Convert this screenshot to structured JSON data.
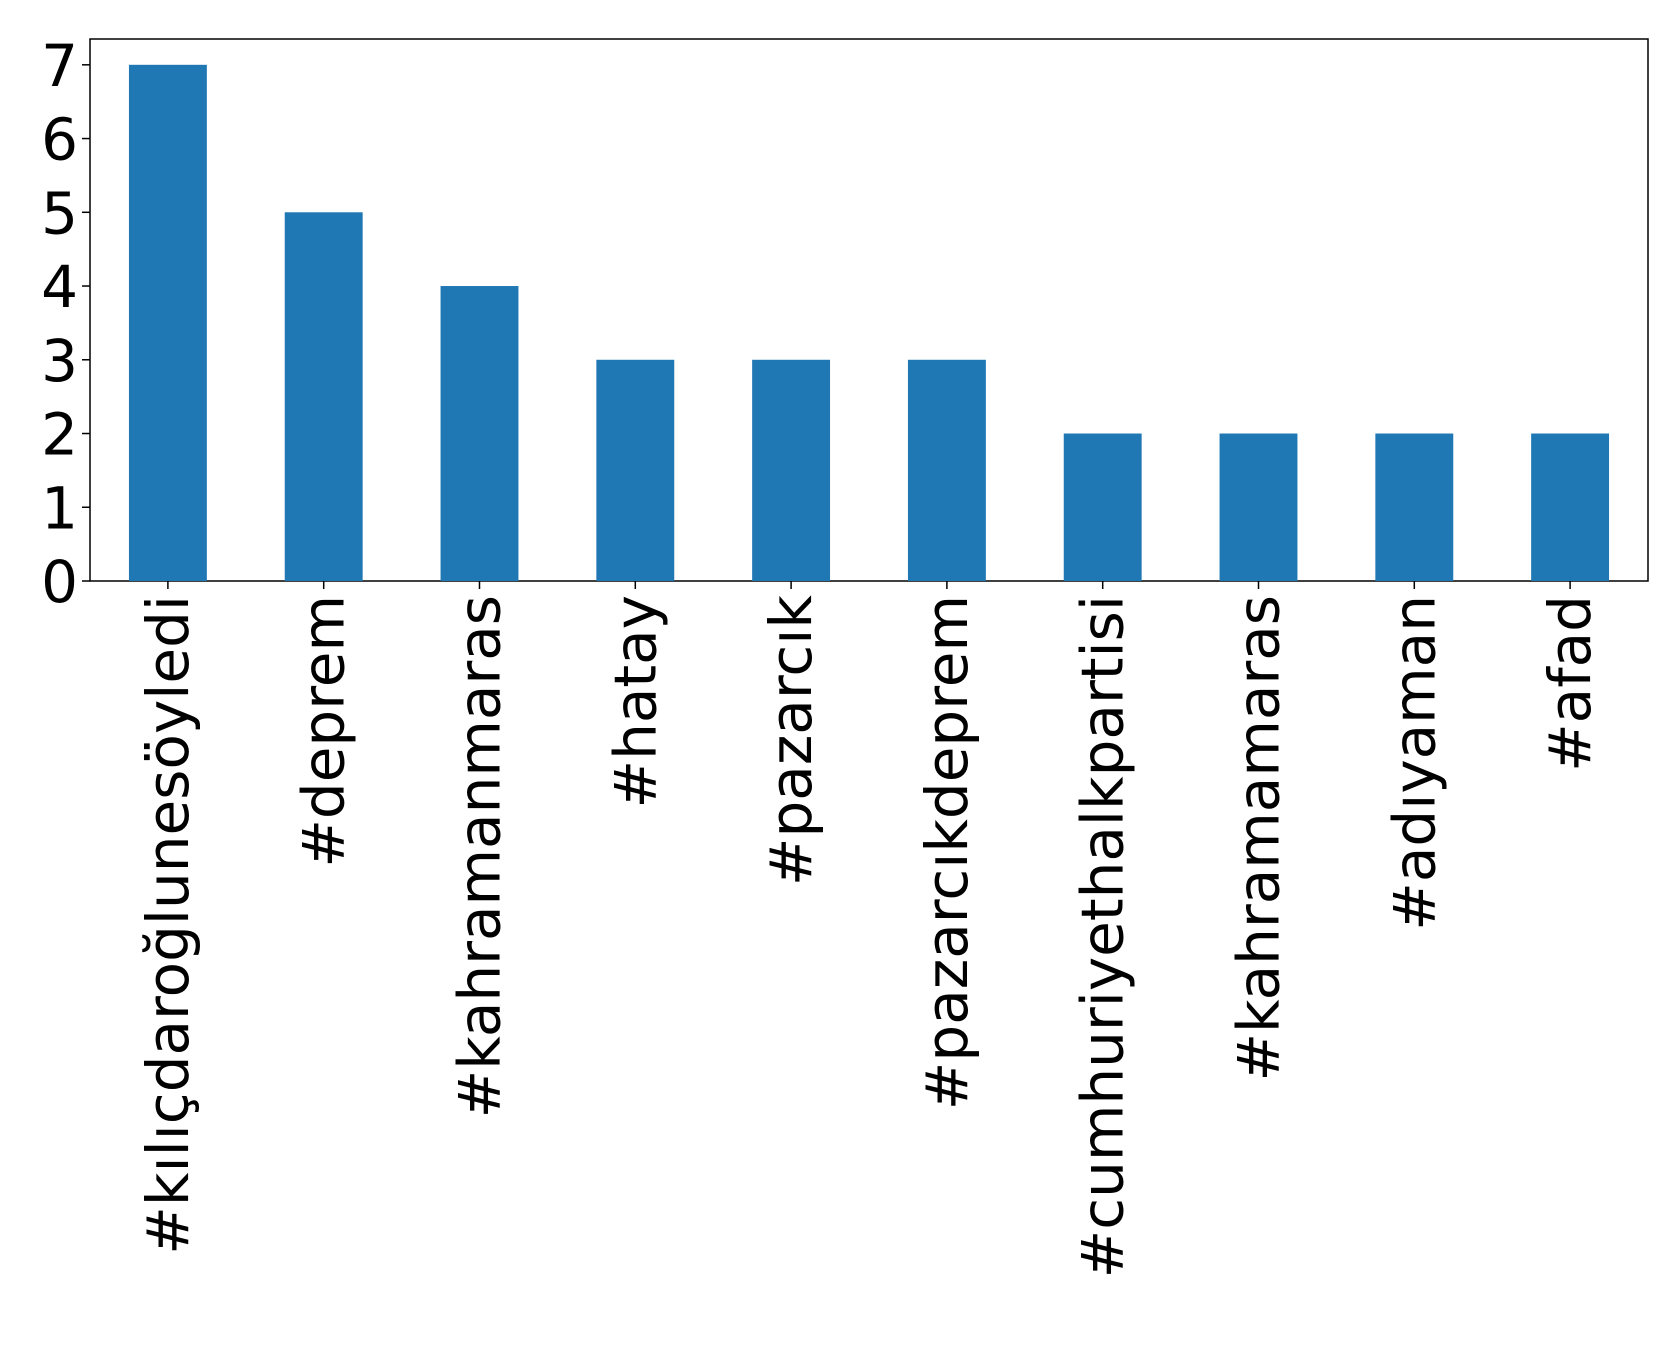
{
  "chart_data": {
    "type": "bar",
    "categories": [
      "#kılıçdaroğlunesöyledi",
      "#deprem",
      "#kahramanmaras",
      "#hatay",
      "#pazarcık",
      "#pazarcıkdeprem",
      "#cumhuriyethalkpartisi",
      "#kahramamaras",
      "#adıyaman",
      "#afad"
    ],
    "values": [
      7,
      5,
      4,
      3,
      3,
      3,
      2,
      2,
      2,
      2
    ],
    "color": "#1f77b4",
    "ylim": [
      0,
      7.35
    ],
    "yticks": [
      0,
      1,
      2,
      3,
      4,
      5,
      6,
      7
    ],
    "grid": false
  }
}
